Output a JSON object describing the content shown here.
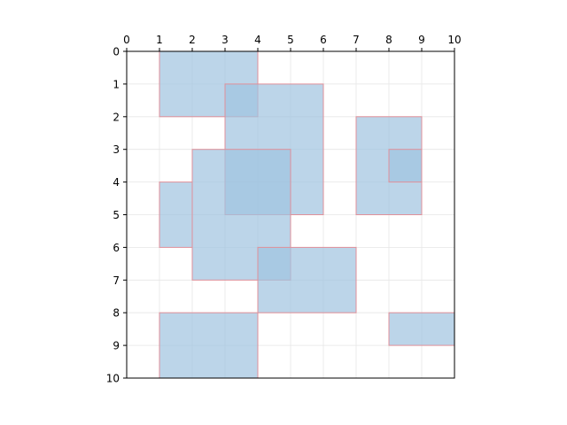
{
  "chart_data": {
    "type": "rectangles",
    "title": "",
    "xlabel": "",
    "ylabel": "",
    "xlim": [
      0,
      10
    ],
    "ylim": [
      10,
      0
    ],
    "y_inverted": true,
    "x_axis_position": "top",
    "grid": true,
    "xticks": [
      "0",
      "1",
      "2",
      "3",
      "4",
      "5",
      "6",
      "7",
      "8",
      "9",
      "10"
    ],
    "yticks": [
      "0",
      "1",
      "2",
      "3",
      "4",
      "5",
      "6",
      "7",
      "8",
      "9",
      "10"
    ],
    "fill_color": "#9fc3df",
    "fill_alpha": 0.7,
    "edge_color": "#e0909a",
    "rectangles": [
      {
        "x0": 1,
        "y0": 0,
        "x1": 4,
        "y1": 2
      },
      {
        "x0": 3,
        "y0": 1,
        "x1": 6,
        "y1": 5
      },
      {
        "x0": 7,
        "y0": 2,
        "x1": 9,
        "y1": 5
      },
      {
        "x0": 8,
        "y0": 3,
        "x1": 9,
        "y1": 4
      },
      {
        "x0": 2,
        "y0": 3,
        "x1": 5,
        "y1": 7
      },
      {
        "x0": 1,
        "y0": 4,
        "x1": 2,
        "y1": 6
      },
      {
        "x0": 4,
        "y0": 6,
        "x1": 7,
        "y1": 8
      },
      {
        "x0": 1,
        "y0": 8,
        "x1": 4,
        "y1": 10
      },
      {
        "x0": 8,
        "y0": 8,
        "x1": 10,
        "y1": 9
      }
    ]
  }
}
